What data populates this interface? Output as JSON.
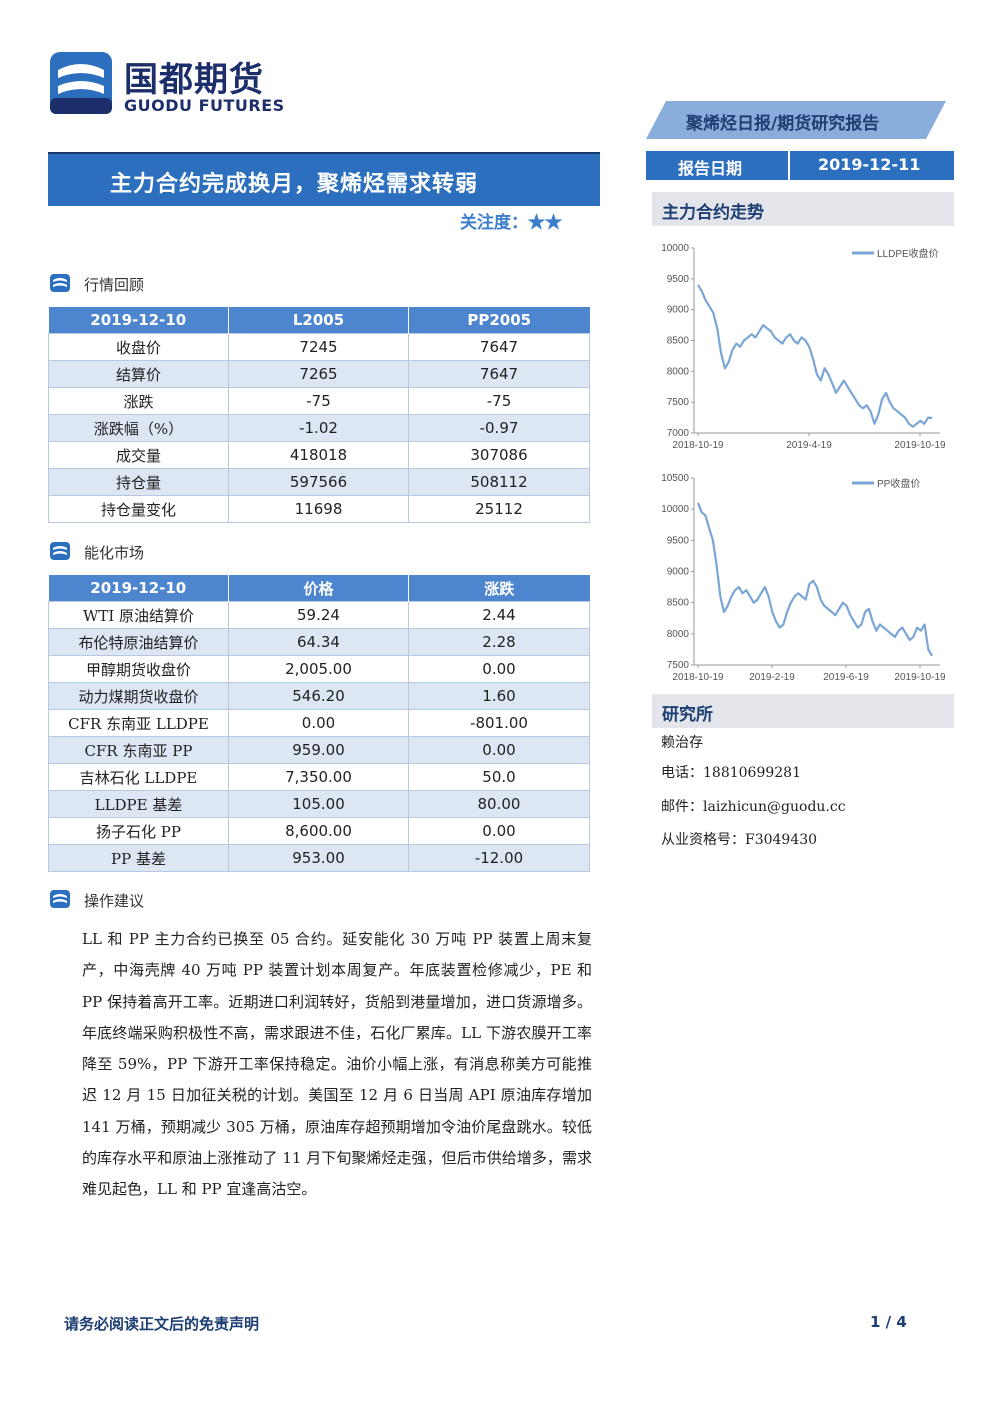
{
  "logo": {
    "cn": "国都期货",
    "en": "GUODU FUTURES"
  },
  "header": {
    "report_type": "聚烯烃日报/期货研究报告",
    "date_label": "报告日期",
    "date_value": "2019-12-11",
    "title": "主力合约完成换月，聚烯烃需求转弱",
    "attention": "关注度：★★"
  },
  "colors": {
    "accent": "#2d6fbf",
    "header_row": "#4d86cf",
    "shade_row": "#dde6f3",
    "chart_line": "#7aa6d6"
  },
  "market_review": {
    "heading": "行情回顾",
    "columns": [
      "2019-12-10",
      "L2005",
      "PP2005"
    ],
    "rows": [
      [
        "收盘价",
        "7245",
        "7647"
      ],
      [
        "结算价",
        "7265",
        "7647"
      ],
      [
        "涨跌",
        "-75",
        "-75"
      ],
      [
        "涨跌幅（%）",
        "-1.02",
        "-0.97"
      ],
      [
        "成交量",
        "418018",
        "307086"
      ],
      [
        "持仓量",
        "597566",
        "508112"
      ],
      [
        "持仓量变化",
        "11698",
        "25112"
      ]
    ]
  },
  "energy_market": {
    "heading": "能化市场",
    "columns": [
      "2019-12-10",
      "价格",
      "涨跌"
    ],
    "rows": [
      [
        "WTI 原油结算价",
        "59.24",
        "2.44"
      ],
      [
        "布伦特原油结算价",
        "64.34",
        "2.28"
      ],
      [
        "甲醇期货收盘价",
        "2,005.00",
        "0.00"
      ],
      [
        "动力煤期货收盘价",
        "546.20",
        "1.60"
      ],
      [
        "CFR 东南亚 LLDPE",
        "0.00",
        "-801.00"
      ],
      [
        "CFR 东南亚 PP",
        "959.00",
        "0.00"
      ],
      [
        "吉林石化 LLDPE",
        "7,350.00",
        "50.0"
      ],
      [
        "LLDPE 基差",
        "105.00",
        "80.00"
      ],
      [
        "扬子石化 PP",
        "8,600.00",
        "0.00"
      ],
      [
        "PP 基差",
        "953.00",
        "-12.00"
      ]
    ]
  },
  "advice": {
    "heading": "操作建议",
    "text": "LL 和 PP 主力合约已换至 05 合约。延安能化 30 万吨 PP 装置上周末复产，中海壳牌 40 万吨 PP 装置计划本周复产。年底装置检修减少，PE 和 PP 保持着高开工率。近期进口利润转好，货船到港量增加，进口货源增多。年底终端采购积极性不高，需求跟进不佳，石化厂累库。LL 下游农膜开工率降至 59%，PP 下游开工率保持稳定。油价小幅上涨，有消息称美方可能推迟 12 月 15 日加征关税的计划。美国至 12 月 6 日当周 API 原油库存增加 141 万桶，预期减少 305 万桶，原油库存超预期增加令油价尾盘跳水。较低的库存水平和原油上涨推动了 11 月下旬聚烯烃走强，但后市供给增多，需求难见起色，LL 和 PP 宜逢高沽空。"
  },
  "side": {
    "trend_heading": "主力合约走势",
    "institute_heading": "研究所",
    "analyst": "赖治存",
    "phone": "电话：18810699281",
    "email": "邮件：laizhicun@guodu.cc",
    "license": "从业资格号：F3049430"
  },
  "chart_data": [
    {
      "type": "line",
      "series": [
        {
          "name": "LLDPE收盘价",
          "values": [
            9400,
            9300,
            9150,
            9050,
            8950,
            8700,
            8300,
            8050,
            8150,
            8350,
            8450,
            8400,
            8500,
            8550,
            8600,
            8550,
            8650,
            8750,
            8700,
            8650,
            8550,
            8500,
            8450,
            8550,
            8600,
            8500,
            8450,
            8550,
            8500,
            8400,
            8200,
            7950,
            7850,
            8050,
            7950,
            7800,
            7650,
            7750,
            7850,
            7750,
            7650,
            7550,
            7450,
            7400,
            7450,
            7350,
            7150,
            7300,
            7550,
            7650,
            7500,
            7400,
            7350,
            7300,
            7250,
            7150,
            7100,
            7150,
            7200,
            7150,
            7250,
            7245
          ]
        }
      ],
      "x_labels": [
        "2018-10-19",
        "2019-4-19",
        "2019-10-19"
      ],
      "ylim": [
        7000,
        10000
      ],
      "yticks": [
        7000,
        7500,
        8000,
        8500,
        9000,
        9500,
        10000
      ],
      "legend": "top-right"
    },
    {
      "type": "line",
      "series": [
        {
          "name": "PP收盘价",
          "values": [
            10100,
            9950,
            9900,
            9700,
            9500,
            9100,
            8600,
            8350,
            8450,
            8600,
            8700,
            8750,
            8650,
            8700,
            8600,
            8500,
            8550,
            8650,
            8750,
            8600,
            8350,
            8200,
            8100,
            8150,
            8350,
            8500,
            8600,
            8650,
            8600,
            8550,
            8800,
            8850,
            8750,
            8550,
            8450,
            8400,
            8350,
            8300,
            8400,
            8500,
            8450,
            8300,
            8200,
            8100,
            8150,
            8350,
            8400,
            8200,
            8050,
            8150,
            8100,
            8050,
            8000,
            7950,
            8050,
            8100,
            8000,
            7900,
            7950,
            8100,
            8050,
            8150,
            7750,
            7647
          ]
        }
      ],
      "x_labels": [
        "2018-10-19",
        "2019-2-19",
        "2019-6-19",
        "2019-10-19"
      ],
      "ylim": [
        7500,
        10500
      ],
      "yticks": [
        7500,
        8000,
        8500,
        9000,
        9500,
        10000,
        10500
      ],
      "legend": "top-right"
    }
  ],
  "footer": {
    "note": "请务必阅读正文后的免责声明",
    "page": "1 / 4"
  }
}
